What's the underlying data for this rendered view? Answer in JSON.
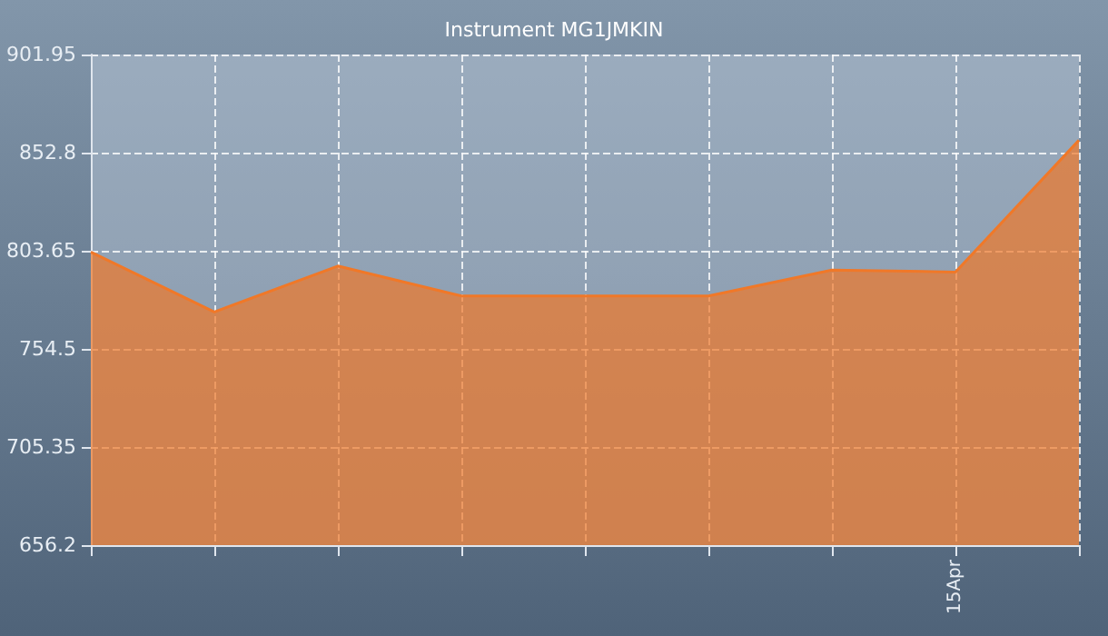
{
  "chart_data": {
    "type": "area",
    "title": "Instrument MG1JMKIN",
    "categories": [
      null,
      null,
      null,
      null,
      null,
      null,
      null,
      "15Apr",
      null
    ],
    "series": [
      {
        "color": "#f07828",
        "values": [
          803,
          773,
          796,
          781,
          781,
          781,
          794,
          793,
          859
        ]
      }
    ],
    "ylim": [
      656.2,
      901.95
    ],
    "yticks": [
      656.2,
      705.35,
      754.5,
      803.65,
      852.8,
      901.95
    ],
    "grid": true,
    "marker": "none"
  }
}
